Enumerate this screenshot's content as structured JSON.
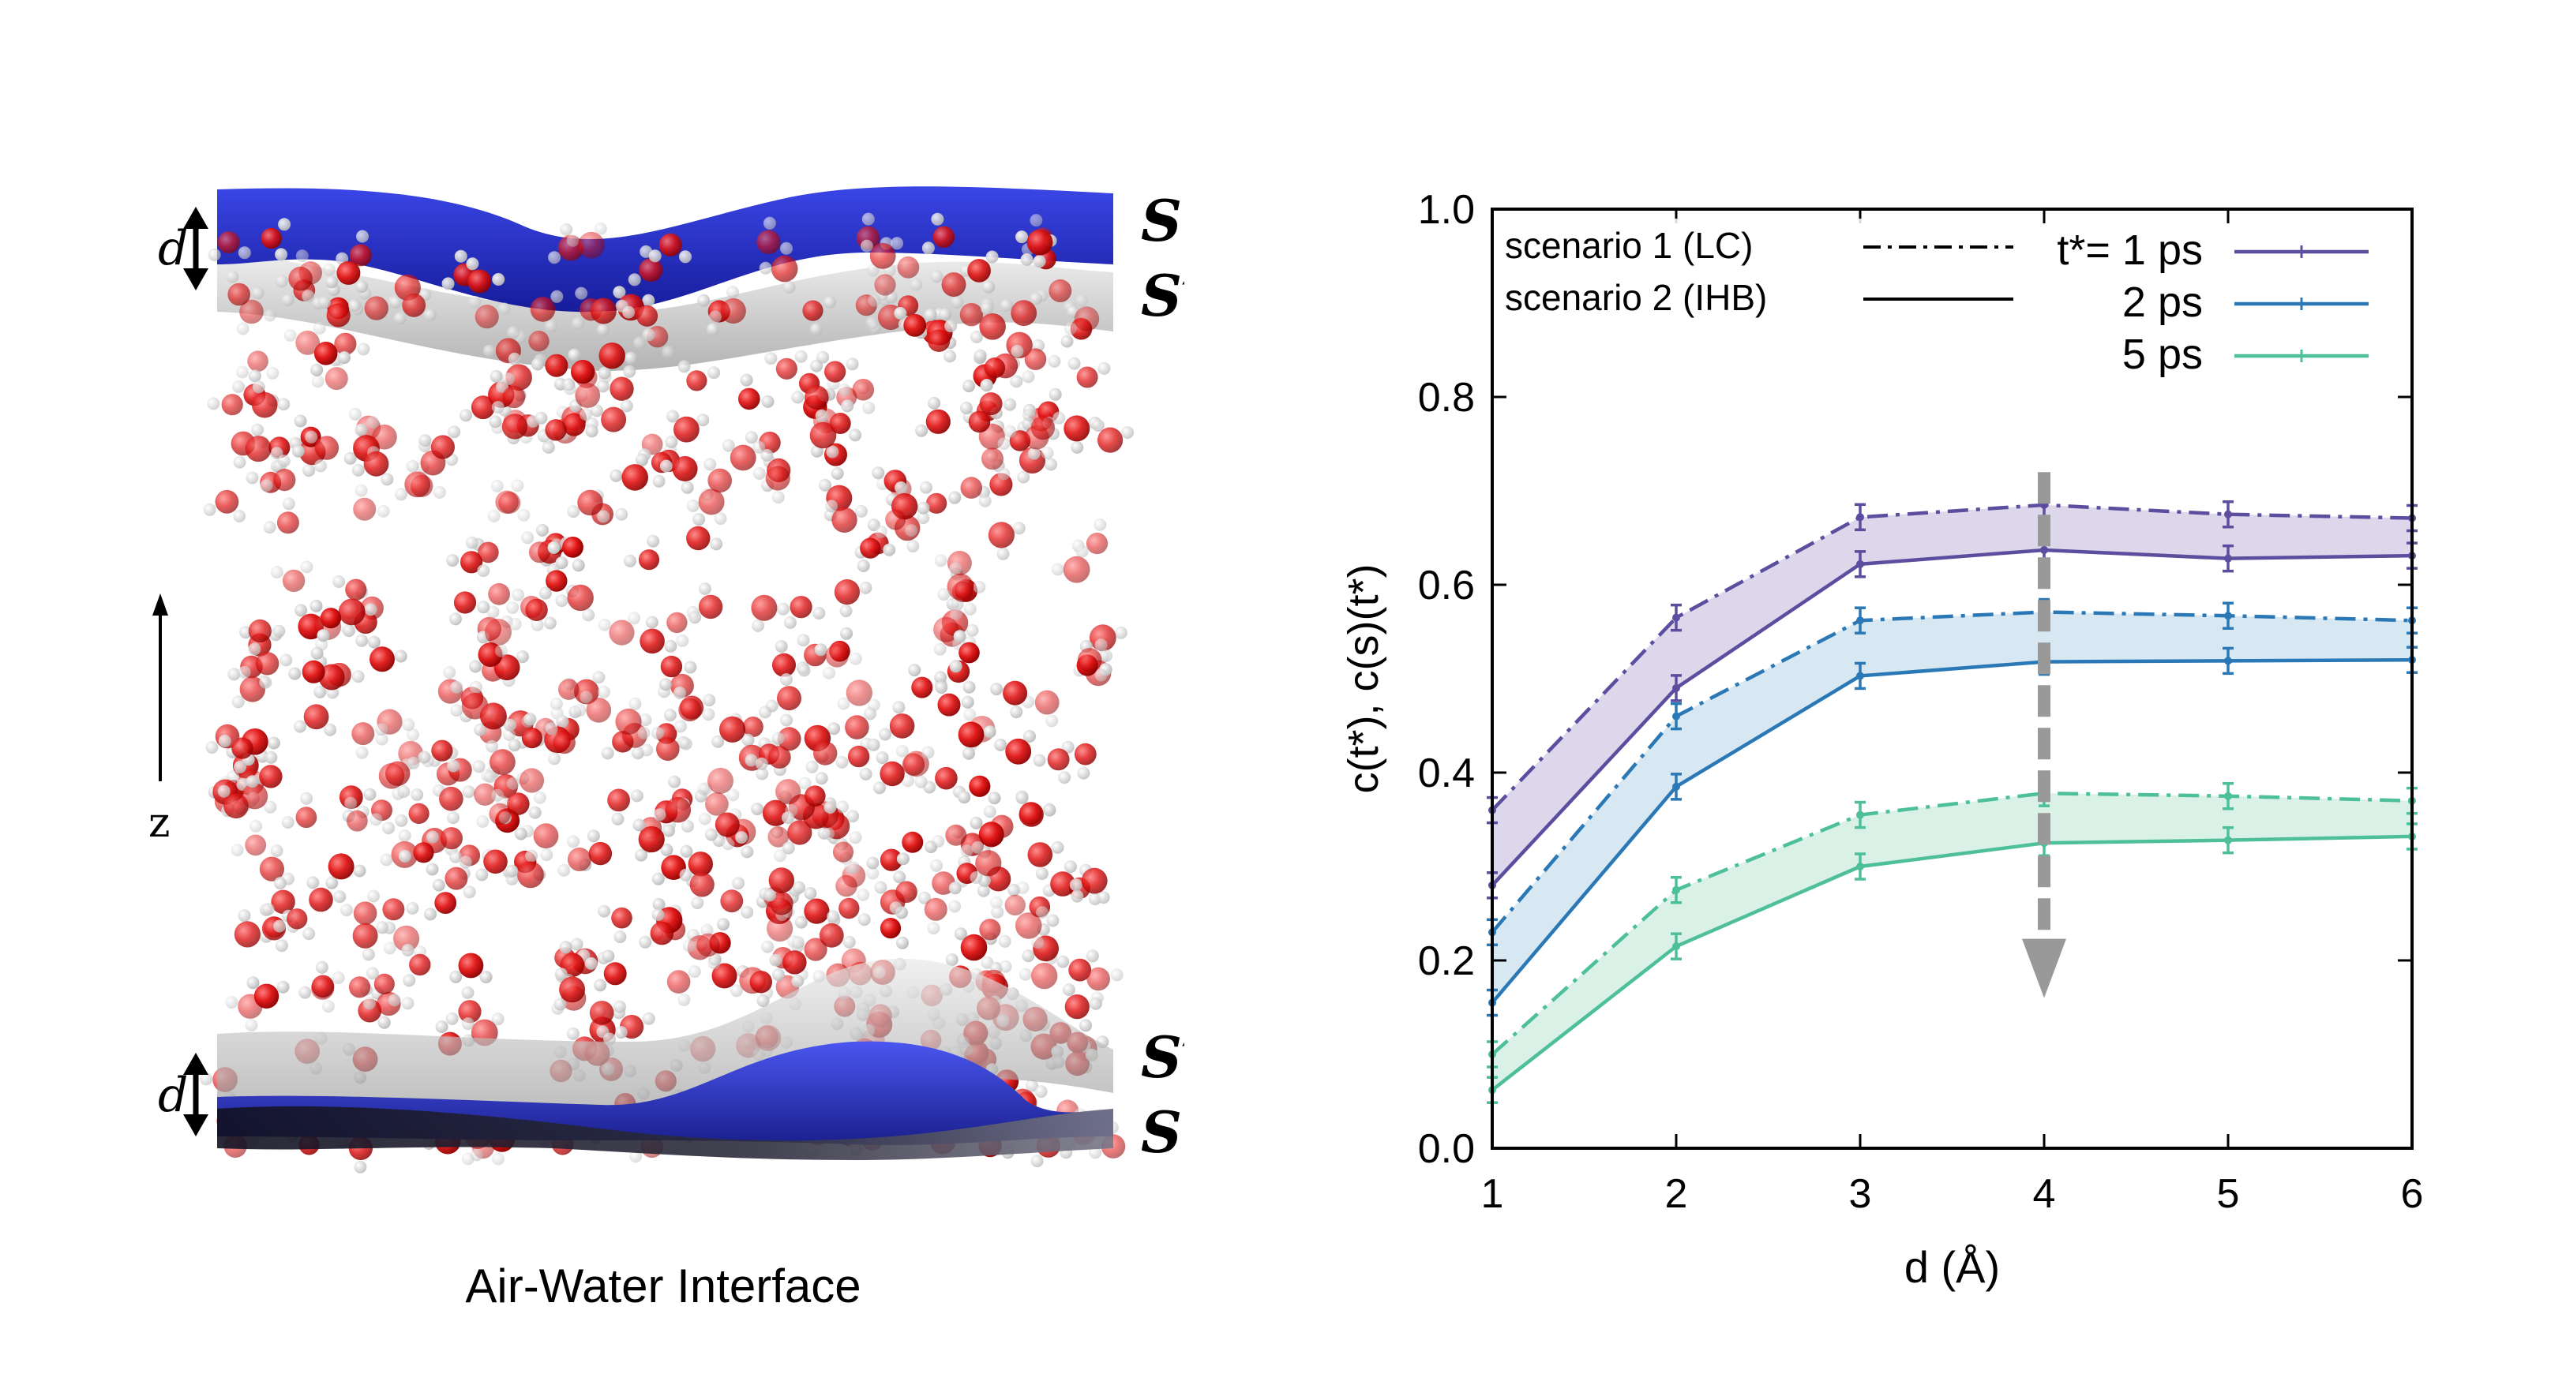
{
  "illustration": {
    "caption": "Air-Water Interface",
    "surface_top": "S",
    "surface_top_prime": "S′",
    "surface_bottom_prime": "S′",
    "surface_bottom": "S",
    "distance_label_top": "d",
    "distance_label_bottom": "d",
    "axis_label": "z",
    "colors": {
      "surface_s": "#2a34d6",
      "surface_s_prime": "#bdbdbd",
      "oxygen": "#e01515",
      "hydrogen": "#f2f2f2"
    }
  },
  "chart_data": {
    "type": "line",
    "xlabel": "d (Å)",
    "ylabel": "c(t*), c(s)(t*)",
    "xlim": [
      1,
      6
    ],
    "ylim": [
      0,
      1.0
    ],
    "xticks": [
      "1",
      "2",
      "3",
      "4",
      "5",
      "6"
    ],
    "yticks": [
      "0.0",
      "0.2",
      "0.4",
      "0.6",
      "0.8",
      "1.0"
    ],
    "x": [
      1,
      2,
      3,
      4,
      5,
      6
    ],
    "legend": {
      "style_entries": [
        "scenario 1 (LC)",
        "scenario 2 (IHB)"
      ],
      "time_title": "t*= 1 ps",
      "time_entries": [
        "2 ps",
        "5 ps"
      ]
    },
    "series": [
      {
        "name": "1 ps",
        "color": "#5c4d9e",
        "fill": "#d9d3ea",
        "lc": [
          0.36,
          0.565,
          0.672,
          0.685,
          0.675,
          0.671
        ],
        "ihb": [
          0.28,
          0.49,
          0.622,
          0.637,
          0.628,
          0.631
        ]
      },
      {
        "name": "2 ps",
        "color": "#2a78b5",
        "fill": "#d3e5f2",
        "lc": [
          0.23,
          0.46,
          0.562,
          0.571,
          0.567,
          0.562
        ],
        "ihb": [
          0.155,
          0.385,
          0.503,
          0.518,
          0.519,
          0.52
        ]
      },
      {
        "name": "5 ps",
        "color": "#4dbf99",
        "fill": "#d6efe4",
        "lc": [
          0.1,
          0.275,
          0.355,
          0.378,
          0.375,
          0.37
        ],
        "ihb": [
          0.062,
          0.215,
          0.3,
          0.325,
          0.328,
          0.332
        ]
      }
    ],
    "arrow": {
      "x": 4,
      "y_from": 0.72,
      "y_to": 0.16,
      "color": "#999999"
    }
  }
}
